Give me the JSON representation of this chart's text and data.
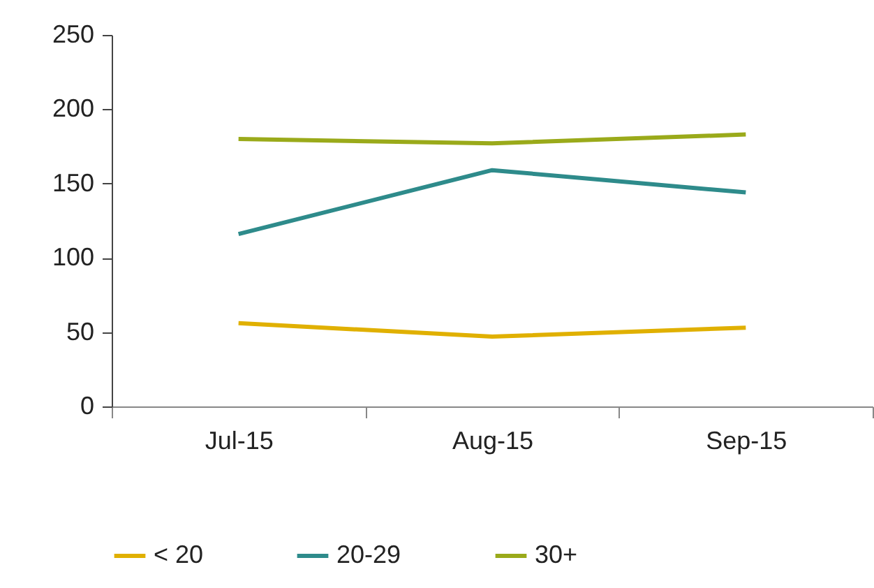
{
  "chart_data": {
    "type": "line",
    "categories": [
      "Jul-15",
      "Aug-15",
      "Sep-15"
    ],
    "series": [
      {
        "name": "< 20",
        "color": "#e0b000",
        "values": [
          56,
          47,
          53
        ]
      },
      {
        "name": "20-29",
        "color": "#2e8b8b",
        "values": [
          116,
          159,
          144
        ]
      },
      {
        "name": "30+",
        "color": "#9aaa1a",
        "values": [
          180,
          177,
          183
        ]
      }
    ],
    "ylim": [
      0,
      250
    ],
    "yticks": [
      0,
      50,
      100,
      150,
      200,
      250
    ],
    "grid": false,
    "legend": "bottom",
    "marker": "none",
    "line_style": "solid"
  }
}
